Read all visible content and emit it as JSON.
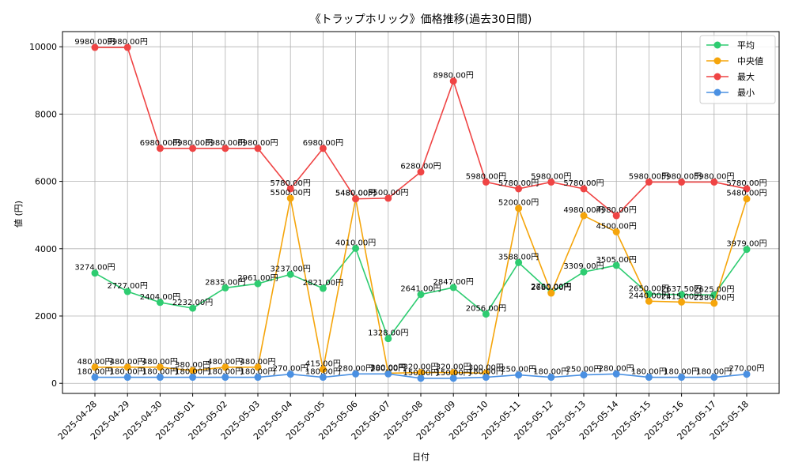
{
  "chart_data": {
    "type": "line",
    "title": "《トラップホリック》価格推移(過去30日間)",
    "xlabel": "日付",
    "ylabel": "値 (円)",
    "ylim": [
      -300,
      10450
    ],
    "yticks": [
      0,
      2000,
      4000,
      6000,
      8000,
      10000
    ],
    "grid": true,
    "legend_position": "top-right",
    "label_suffix": "円",
    "categories": [
      "2025-04-28",
      "2025-04-29",
      "2025-04-30",
      "2025-05-01",
      "2025-05-02",
      "2025-05-03",
      "2025-05-04",
      "2025-05-05",
      "2025-05-06",
      "2025-05-07",
      "2025-05-08",
      "2025-05-09",
      "2025-05-10",
      "2025-05-11",
      "2025-05-12",
      "2025-05-13",
      "2025-05-14",
      "2025-05-15",
      "2025-05-16",
      "2025-05-17",
      "2025-05-18"
    ],
    "series": [
      {
        "name": "平均",
        "color": "#2ecc71",
        "values": [
          3274,
          2727,
          2404,
          2232,
          2835,
          2961,
          3237,
          2821,
          4010,
          1328,
          2641,
          2847,
          2056,
          3588,
          2700,
          3309,
          3505,
          2650,
          2637.5,
          2625,
          3979
        ]
      },
      {
        "name": "中央値",
        "color": "#f5a50b",
        "values": [
          480,
          480,
          480,
          380,
          480,
          480,
          5500,
          415,
          5480,
          300,
          320,
          320,
          300,
          5200,
          2680,
          4980,
          4500,
          2440,
          2415,
          2380,
          5480
        ]
      },
      {
        "name": "最大",
        "color": "#ef4444",
        "values": [
          9980,
          9980,
          6980,
          6980,
          6980,
          6980,
          5780,
          6980,
          5480,
          5500,
          6280,
          8980,
          5980,
          5780,
          5980,
          5780,
          4980,
          5980,
          5980,
          5980,
          5780
        ]
      },
      {
        "name": "最小",
        "color": "#4a90e2",
        "values": [
          180,
          180,
          180,
          180,
          180,
          180,
          270,
          180,
          280,
          280,
          150,
          150,
          180,
          250,
          180,
          250,
          280,
          180,
          180,
          180,
          270
        ]
      }
    ]
  }
}
